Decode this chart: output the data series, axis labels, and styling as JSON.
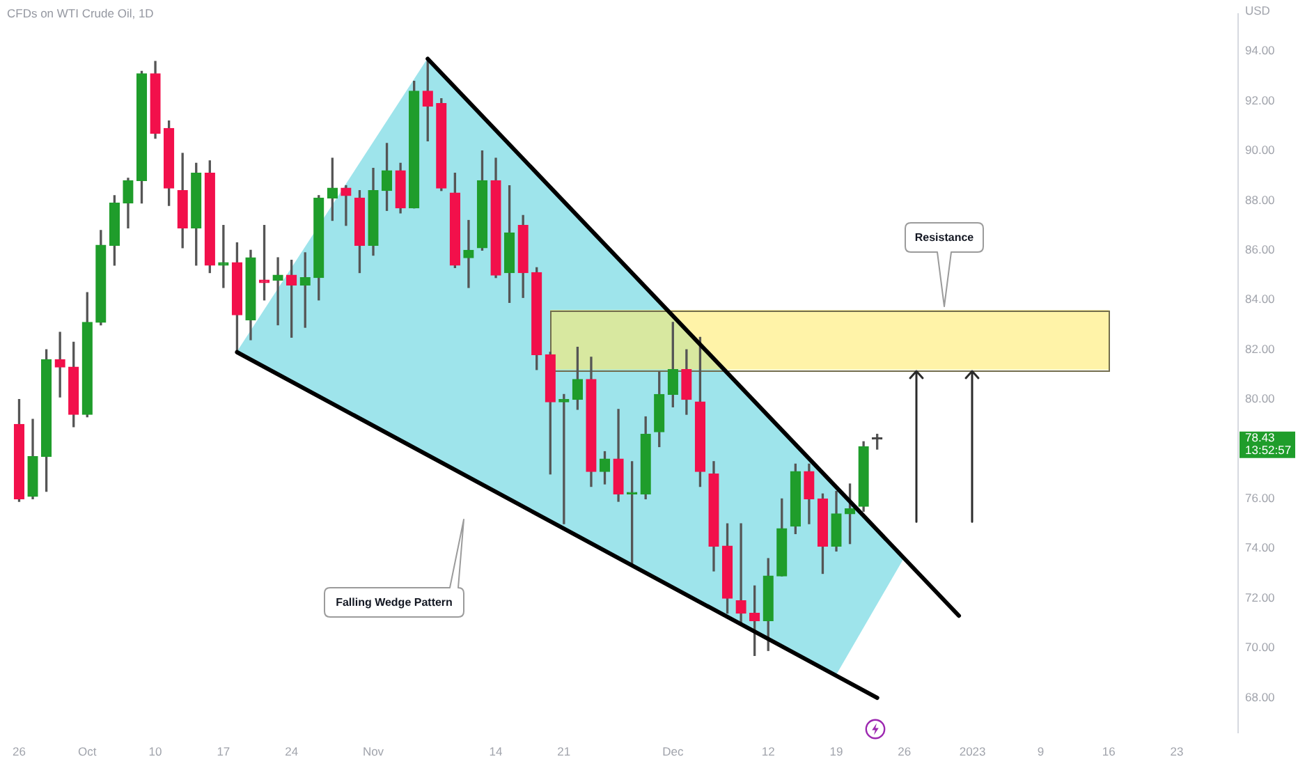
{
  "chart_data": {
    "type": "candlestick",
    "title": "CFDs on WTI Crude Oil, 1D",
    "ylabel": "USD",
    "categories": [
      "26",
      null,
      null,
      null,
      null,
      "Oct",
      null,
      null,
      null,
      null,
      "10",
      null,
      null,
      null,
      null,
      "17",
      null,
      null,
      null,
      null,
      "24",
      null,
      null,
      null,
      null,
      null,
      "Nov",
      null,
      null,
      null,
      null,
      null,
      null,
      null,
      null,
      "14",
      null,
      null,
      null,
      null,
      "21",
      null,
      null,
      null,
      null,
      null,
      null,
      null,
      "Dec",
      null,
      null,
      null,
      null,
      null,
      null,
      "12",
      null,
      null,
      null,
      null,
      "19",
      null,
      null,
      null,
      null,
      "26",
      null,
      null,
      null,
      null,
      "2023",
      null,
      null,
      null,
      null,
      "9",
      null,
      null,
      null,
      null,
      "16",
      null,
      null,
      null,
      null,
      "23",
      null,
      null,
      null,
      null
    ],
    "ohlc": [
      [
        79.0,
        80.0,
        75.9,
        76.0
      ],
      [
        76.1,
        79.2,
        76.0,
        77.7
      ],
      [
        77.7,
        82.0,
        76.3,
        81.6
      ],
      [
        81.6,
        82.7,
        80.1,
        81.3
      ],
      [
        81.3,
        82.3,
        78.9,
        79.4
      ],
      [
        79.4,
        84.3,
        79.3,
        83.1
      ],
      [
        83.1,
        86.8,
        83.0,
        86.2
      ],
      [
        86.2,
        88.2,
        85.4,
        87.9
      ],
      [
        87.9,
        88.9,
        86.9,
        88.8
      ],
      [
        88.8,
        93.2,
        87.9,
        93.1
      ],
      [
        93.1,
        93.6,
        90.5,
        90.7
      ],
      [
        90.9,
        91.2,
        87.8,
        88.5
      ],
      [
        88.4,
        89.9,
        86.1,
        86.9
      ],
      [
        86.9,
        89.5,
        85.4,
        89.1
      ],
      [
        89.1,
        89.6,
        85.1,
        85.4
      ],
      [
        85.4,
        87.0,
        84.5,
        85.5
      ],
      [
        85.5,
        86.3,
        81.9,
        83.4
      ],
      [
        83.2,
        86.0,
        82.4,
        85.7
      ],
      [
        84.8,
        87.0,
        84.0,
        84.7
      ],
      [
        84.8,
        85.7,
        83.0,
        85.0
      ],
      [
        85.0,
        85.6,
        82.5,
        84.6
      ],
      [
        84.6,
        85.9,
        82.9,
        84.9
      ],
      [
        84.9,
        88.2,
        84.0,
        88.1
      ],
      [
        88.1,
        89.7,
        87.2,
        88.5
      ],
      [
        88.5,
        88.6,
        87.0,
        88.2
      ],
      [
        88.1,
        88.4,
        85.1,
        86.2
      ],
      [
        86.2,
        89.3,
        85.8,
        88.4
      ],
      [
        88.4,
        90.3,
        87.6,
        89.2
      ],
      [
        89.2,
        89.5,
        87.5,
        87.7
      ],
      [
        87.7,
        92.8,
        87.7,
        92.4
      ],
      [
        92.4,
        93.6,
        90.4,
        91.8
      ],
      [
        91.9,
        92.1,
        88.4,
        88.5
      ],
      [
        88.3,
        89.1,
        85.3,
        85.4
      ],
      [
        85.7,
        87.2,
        84.5,
        86.0
      ],
      [
        86.1,
        90.0,
        86.0,
        88.8
      ],
      [
        88.8,
        89.7,
        84.9,
        85.0
      ],
      [
        85.1,
        88.6,
        83.9,
        86.7
      ],
      [
        87.0,
        87.4,
        84.1,
        85.1
      ],
      [
        85.1,
        85.3,
        81.2,
        81.8
      ],
      [
        81.8,
        81.9,
        77.0,
        79.9
      ],
      [
        79.9,
        80.2,
        75.0,
        80.0
      ],
      [
        80.0,
        82.1,
        79.6,
        80.8
      ],
      [
        80.8,
        81.7,
        76.5,
        77.1
      ],
      [
        77.1,
        77.9,
        76.6,
        77.6
      ],
      [
        77.6,
        79.6,
        75.9,
        76.2
      ],
      [
        76.2,
        77.5,
        73.4,
        76.2
      ],
      [
        76.2,
        79.3,
        76.0,
        78.6
      ],
      [
        78.7,
        81.1,
        78.1,
        80.2
      ],
      [
        80.2,
        83.1,
        79.7,
        81.2
      ],
      [
        81.2,
        82.0,
        79.4,
        80.0
      ],
      [
        79.9,
        82.5,
        76.5,
        77.1
      ],
      [
        77.0,
        77.5,
        73.1,
        74.1
      ],
      [
        74.1,
        75.0,
        71.4,
        72.0
      ],
      [
        71.9,
        75.0,
        71.0,
        71.4
      ],
      [
        71.4,
        72.5,
        69.7,
        71.1
      ],
      [
        71.1,
        73.6,
        69.9,
        72.9
      ],
      [
        72.9,
        76.0,
        72.9,
        74.8
      ],
      [
        74.9,
        77.4,
        74.6,
        77.1
      ],
      [
        77.1,
        77.4,
        75.0,
        76.0
      ],
      [
        76.0,
        76.2,
        73.0,
        74.1
      ],
      [
        74.1,
        76.3,
        73.9,
        75.4
      ],
      [
        75.4,
        76.6,
        74.2,
        75.6
      ],
      [
        75.7,
        78.3,
        75.5,
        78.1
      ],
      [
        78.4,
        78.6,
        78.0,
        78.43
      ],
      null,
      null,
      null,
      null,
      null,
      null,
      null,
      null,
      null,
      null,
      null,
      null,
      null,
      null,
      null,
      null,
      null,
      null,
      null,
      null,
      null,
      null,
      null,
      null,
      null,
      null
    ],
    "colors": [
      "#f2104b",
      "#1f9d2b",
      "#1f9d2b",
      "#f2104b",
      "#f2104b",
      "#1f9d2b",
      "#1f9d2b",
      "#1f9d2b",
      "#1f9d2b",
      "#1f9d2b",
      "#f2104b",
      "#f2104b",
      "#f2104b",
      "#1f9d2b",
      "#f2104b",
      "#1f9d2b",
      "#f2104b",
      "#1f9d2b",
      "#f2104b",
      "#1f9d2b",
      "#f2104b",
      "#1f9d2b",
      "#1f9d2b",
      "#1f9d2b",
      "#f2104b",
      "#f2104b",
      "#1f9d2b",
      "#1f9d2b",
      "#f2104b",
      "#1f9d2b",
      "#f2104b",
      "#f2104b",
      "#f2104b",
      "#1f9d2b",
      "#1f9d2b",
      "#f2104b",
      "#1f9d2b",
      "#f2104b",
      "#f2104b",
      "#f2104b",
      "#1f9d2b",
      "#1f9d2b",
      "#f2104b",
      "#1f9d2b",
      "#f2104b",
      "#1f9d2b",
      "#1f9d2b",
      "#1f9d2b",
      "#1f9d2b",
      "#f2104b",
      "#f2104b",
      "#f2104b",
      "#f2104b",
      "#f2104b",
      "#f2104b",
      "#1f9d2b",
      "#1f9d2b",
      "#1f9d2b",
      "#f2104b",
      "#f2104b",
      "#1f9d2b",
      "#1f9d2b",
      "#1f9d2b",
      "#444444",
      null,
      null,
      null,
      null,
      null,
      null,
      null,
      null,
      null,
      null,
      null,
      null,
      null,
      null,
      null,
      null,
      null,
      null,
      null,
      null,
      null,
      null,
      null,
      null,
      null,
      null
    ],
    "series": [
      {
        "type": "line",
        "color": "#000000",
        "values": [
          null,
          null,
          null,
          null,
          null,
          null,
          null,
          null,
          null,
          null,
          null,
          null,
          null,
          null,
          null,
          null,
          null,
          null,
          null,
          null,
          null,
          null,
          null,
          null,
          null,
          null,
          null,
          null,
          null,
          null,
          93.7,
          null,
          null,
          null,
          null,
          null,
          null,
          null,
          null,
          null,
          null,
          null,
          null,
          null,
          null,
          null,
          null,
          null,
          null,
          null,
          null,
          null,
          null,
          null,
          null,
          null,
          null,
          null,
          null,
          null,
          null,
          null,
          null,
          null,
          null,
          null,
          null,
          null,
          null,
          71.3,
          null,
          null,
          null,
          null,
          null,
          null,
          null,
          null,
          null,
          null,
          null,
          null,
          null,
          null,
          null,
          null,
          null,
          null,
          null,
          null
        ]
      },
      {
        "type": "line",
        "color": "#000000",
        "values": [
          null,
          null,
          null,
          null,
          null,
          null,
          null,
          null,
          null,
          null,
          null,
          null,
          null,
          null,
          null,
          null,
          81.9,
          null,
          null,
          null,
          null,
          null,
          null,
          null,
          null,
          null,
          null,
          null,
          null,
          null,
          null,
          null,
          null,
          null,
          null,
          null,
          null,
          null,
          null,
          null,
          null,
          null,
          null,
          null,
          null,
          null,
          null,
          null,
          null,
          null,
          null,
          null,
          null,
          null,
          null,
          null,
          null,
          null,
          null,
          null,
          null,
          null,
          null,
          68.0,
          null,
          null,
          null,
          null,
          null,
          null,
          null,
          null,
          null,
          null,
          null,
          null,
          null,
          null,
          null,
          null,
          null,
          null,
          null,
          null,
          null,
          null,
          null,
          null,
          null,
          null
        ]
      }
    ],
    "ylim": [
      66.6,
      95.5
    ],
    "yticks": [
      {
        "value": 68,
        "label": "68.00"
      },
      {
        "value": 70,
        "label": "70.00"
      },
      {
        "value": 72,
        "label": "72.00"
      },
      {
        "value": 74,
        "label": "74.00"
      },
      {
        "value": 76,
        "label": "76.00"
      },
      {
        "value": 80,
        "label": "80.00"
      },
      {
        "value": 82,
        "label": "82.00"
      },
      {
        "value": 84,
        "label": "84.00"
      },
      {
        "value": 86,
        "label": "86.00"
      },
      {
        "value": 88,
        "label": "88.00"
      },
      {
        "value": 90,
        "label": "90.00"
      },
      {
        "value": 92,
        "label": "92.00"
      },
      {
        "value": 94,
        "label": "94.00"
      }
    ],
    "bands": [
      {
        "axis": "y",
        "from": 81.2,
        "to": 83.6,
        "color": "#fff3a8"
      }
    ],
    "annotations": [
      "78.43\n13:52:57",
      "Resistance",
      "Falling Wedge Pattern"
    ]
  }
}
